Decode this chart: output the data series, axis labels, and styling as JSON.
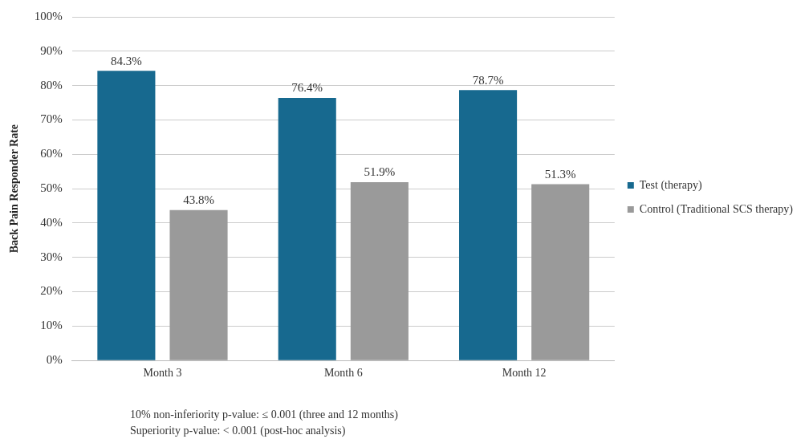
{
  "chart_data": {
    "type": "bar",
    "ylabel": "Back Pain Responder Rate",
    "categories": [
      "Month 3",
      "Month 6",
      "Month 12"
    ],
    "series": [
      {
        "name": "Test (therapy)",
        "color": "#17698f",
        "values": [
          84.3,
          76.4,
          78.7
        ],
        "value_labels": [
          "84.3%",
          "76.4%",
          "78.7%"
        ]
      },
      {
        "name": "Control (Traditional SCS therapy)",
        "color": "#9a9a9a",
        "values": [
          43.8,
          51.9,
          51.3
        ],
        "value_labels": [
          "43.8%",
          "51.9%",
          "51.3%"
        ]
      }
    ],
    "ylim": [
      0,
      100
    ],
    "yticks": [
      {
        "value": 0,
        "label": "0%"
      },
      {
        "value": 10,
        "label": "10%"
      },
      {
        "value": 20,
        "label": "20%"
      },
      {
        "value": 30,
        "label": "30%"
      },
      {
        "value": 40,
        "label": "40%"
      },
      {
        "value": 50,
        "label": "50%"
      },
      {
        "value": 60,
        "label": "60%"
      },
      {
        "value": 70,
        "label": "70%"
      },
      {
        "value": 80,
        "label": "80%"
      },
      {
        "value": 90,
        "label": "90%"
      },
      {
        "value": 100,
        "label": "100%"
      }
    ],
    "grid": "y",
    "legend": "right",
    "annotations": [
      "10% non-inferiority p-value: ≤ 0.001 (three and 12 months)",
      "Superiority p-value: < 0.001 (post-hoc analysis)"
    ]
  }
}
